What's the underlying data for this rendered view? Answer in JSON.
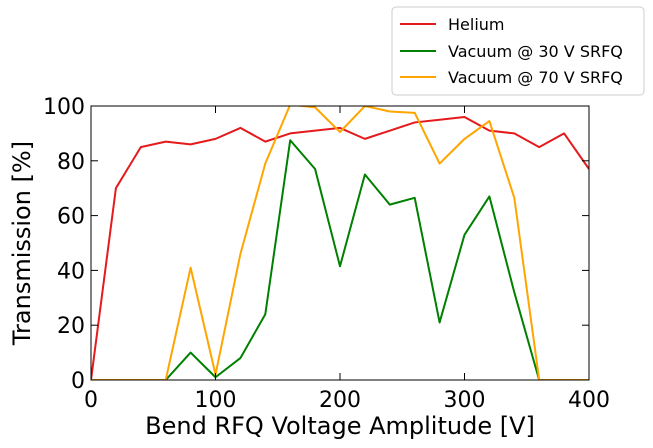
{
  "chart_data": {
    "type": "line",
    "xlabel": "Bend RFQ Voltage Amplitude [V]",
    "ylabel": "Transmission [%]",
    "xlim": [
      0,
      400
    ],
    "ylim": [
      0,
      100
    ],
    "xticks": [
      0,
      100,
      200,
      300,
      400
    ],
    "yticks": [
      0,
      20,
      40,
      60,
      80,
      100
    ],
    "grid": false,
    "legend_position": "top-right-outside",
    "x": [
      0,
      20,
      40,
      60,
      80,
      100,
      120,
      140,
      160,
      180,
      200,
      220,
      240,
      260,
      280,
      300,
      320,
      340,
      360,
      380,
      400
    ],
    "series": [
      {
        "name": "Helium",
        "color": "#e41a1c",
        "values": [
          0,
          70,
          85,
          87,
          86,
          88,
          92,
          87,
          90,
          91,
          92,
          88,
          91,
          94,
          95,
          96,
          91,
          90,
          85,
          90,
          77
        ]
      },
      {
        "name": "Vacuum @ 30 V SRFQ",
        "color": "#008000",
        "values": [
          0,
          0,
          0,
          0,
          10,
          1,
          8,
          24,
          87.5,
          77,
          41.5,
          75,
          64,
          66.5,
          21,
          53,
          67,
          32,
          0,
          0,
          0
        ]
      },
      {
        "name": "Vacuum @ 70 V SRFQ",
        "color": "#ffa500",
        "values": [
          0,
          0,
          0,
          0,
          41,
          2,
          46,
          79,
          100.5,
          99.5,
          90.5,
          100,
          98,
          97.5,
          79,
          88,
          94.5,
          66.5,
          0,
          0,
          0
        ]
      }
    ]
  }
}
